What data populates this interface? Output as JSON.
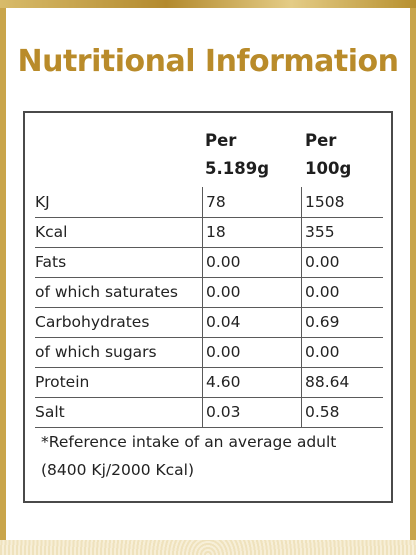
{
  "title": "Nutritional Information",
  "table": {
    "headers": {
      "col1": [
        "Per",
        "5.189g"
      ],
      "col2": [
        "Per",
        "100g"
      ]
    },
    "rows": [
      {
        "label": "KJ",
        "per_serving": "78",
        "per_100g": "1508"
      },
      {
        "label": "Kcal",
        "per_serving": "18",
        "per_100g": "355"
      },
      {
        "label": "Fats",
        "per_serving": "0.00",
        "per_100g": "0.00"
      },
      {
        "label": "of which saturates",
        "per_serving": "0.00",
        "per_100g": "0.00"
      },
      {
        "label": "Carbohydrates",
        "per_serving": "0.04",
        "per_100g": "0.69"
      },
      {
        "label": "of which sugars",
        "per_serving": "0.00",
        "per_100g": "0.00"
      },
      {
        "label": "Protein",
        "per_serving": "4.60",
        "per_100g": "88.64"
      },
      {
        "label": "Salt",
        "per_serving": "0.03",
        "per_100g": "0.58"
      }
    ]
  },
  "footnote": {
    "line1": "*Reference intake of an average adult",
    "line2": "(8400 Kj/2000 Kcal)"
  },
  "colors": {
    "accent_gold": "#b98b2a",
    "border": "#4a4a4a"
  }
}
